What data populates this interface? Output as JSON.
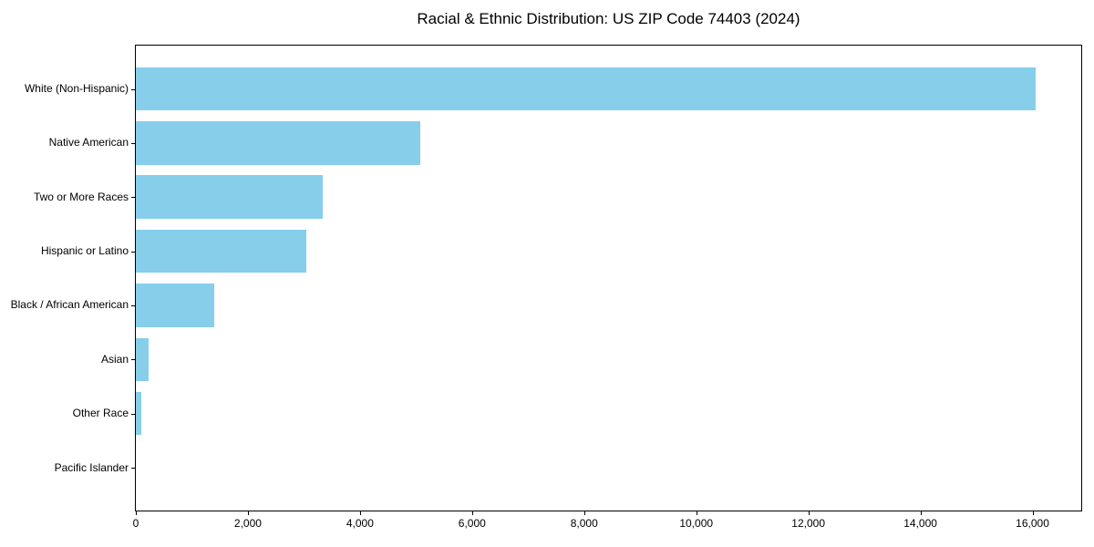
{
  "figure": {
    "background": "#ffffff",
    "text_color": "#000000",
    "axis_color": "#000000"
  },
  "chart_data": {
    "type": "bar",
    "orientation": "horizontal",
    "title": "Racial & Ethnic Distribution: US ZIP Code 74403 (2024)",
    "categories": [
      "White (Non-Hispanic)",
      "Native American",
      "Two or More Races",
      "Hispanic or Latino",
      "Black / African American",
      "Asian",
      "Other Race",
      "Pacific Islander"
    ],
    "values": [
      16060,
      5080,
      3340,
      3040,
      1400,
      230,
      100,
      0
    ],
    "bar_color": "#87CEEB",
    "xlabel": "",
    "ylabel": "",
    "xlim": [
      0,
      16870
    ],
    "x_ticks": [
      0,
      2000,
      4000,
      6000,
      8000,
      10000,
      12000,
      14000,
      16000
    ],
    "x_tick_labels": [
      "0",
      "2,000",
      "4,000",
      "6,000",
      "8,000",
      "10,000",
      "12,000",
      "14,000",
      "16,000"
    ],
    "grid": false,
    "legend": false
  }
}
